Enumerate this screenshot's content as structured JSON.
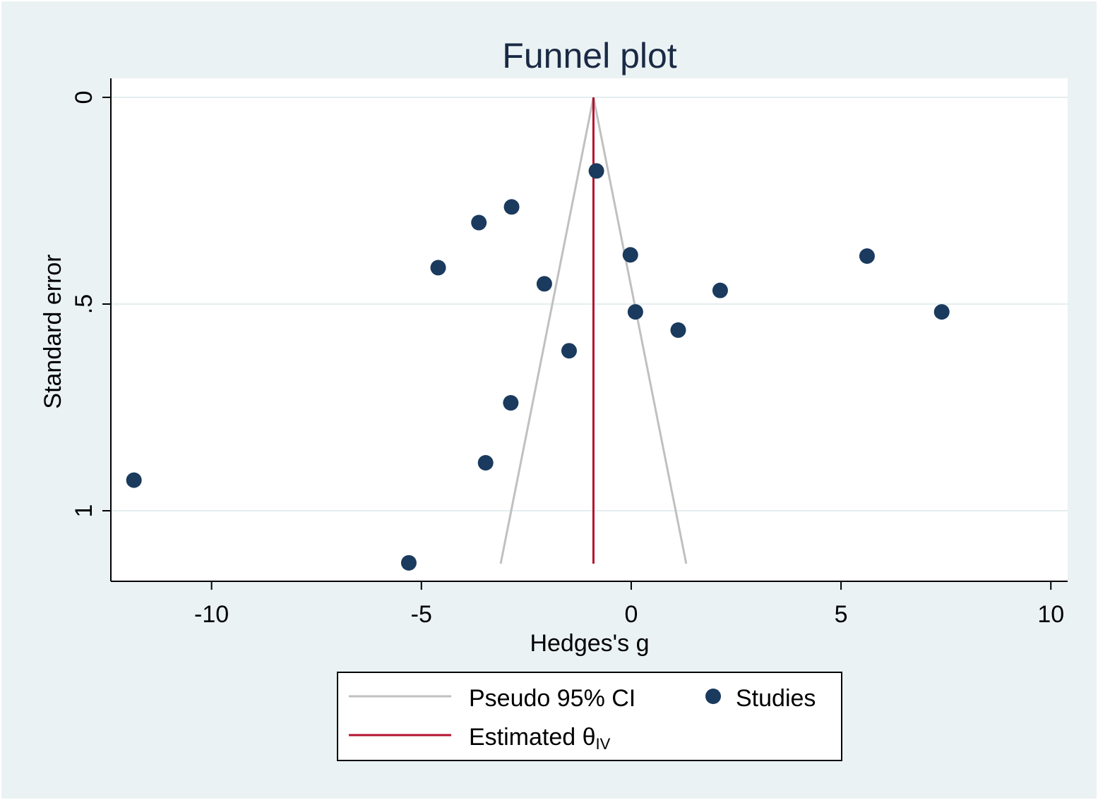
{
  "chart_data": {
    "type": "scatter",
    "title": "Funnel plot",
    "xlabel": "Hedges's g",
    "ylabel": "Standard error",
    "xlim": [
      -12.4,
      10.4
    ],
    "ylim": [
      0,
      1.17
    ],
    "y_reversed": true,
    "x_ticks": [
      -10,
      -5,
      0,
      5,
      10
    ],
    "x_tick_labels": [
      "-10",
      "-5",
      "0",
      "5",
      "10"
    ],
    "y_ticks": [
      0,
      0.5,
      1
    ],
    "y_tick_labels": [
      "0",
      ".5",
      "1"
    ],
    "grid": true,
    "estimate": -0.9,
    "ci_bottom_se": 1.128,
    "ci_z": 1.96,
    "series": [
      {
        "name": "Studies",
        "color": "#1a3a5e",
        "points": [
          {
            "x": -0.83,
            "y": 0.178
          },
          {
            "x": -2.85,
            "y": 0.265
          },
          {
            "x": -3.63,
            "y": 0.303
          },
          {
            "x": -0.02,
            "y": 0.381
          },
          {
            "x": 5.62,
            "y": 0.384
          },
          {
            "x": -4.6,
            "y": 0.412
          },
          {
            "x": -2.07,
            "y": 0.451
          },
          {
            "x": 2.12,
            "y": 0.467
          },
          {
            "x": 0.1,
            "y": 0.519
          },
          {
            "x": 7.4,
            "y": 0.519
          },
          {
            "x": 1.12,
            "y": 0.563
          },
          {
            "x": -1.48,
            "y": 0.613
          },
          {
            "x": -2.87,
            "y": 0.739
          },
          {
            "x": -3.47,
            "y": 0.884
          },
          {
            "x": -11.85,
            "y": 0.926
          },
          {
            "x": -5.3,
            "y": 1.126
          }
        ]
      }
    ],
    "ci_color": "#c0c0c0",
    "estimate_color": "#b5122e",
    "legend": {
      "position": "bottom",
      "entries": [
        {
          "label": "Pseudo 95% CI",
          "kind": "ci"
        },
        {
          "label": "Studies",
          "kind": "studies"
        },
        {
          "label": "Estimated θ",
          "subscript": "IV",
          "kind": "estimate"
        }
      ]
    }
  }
}
